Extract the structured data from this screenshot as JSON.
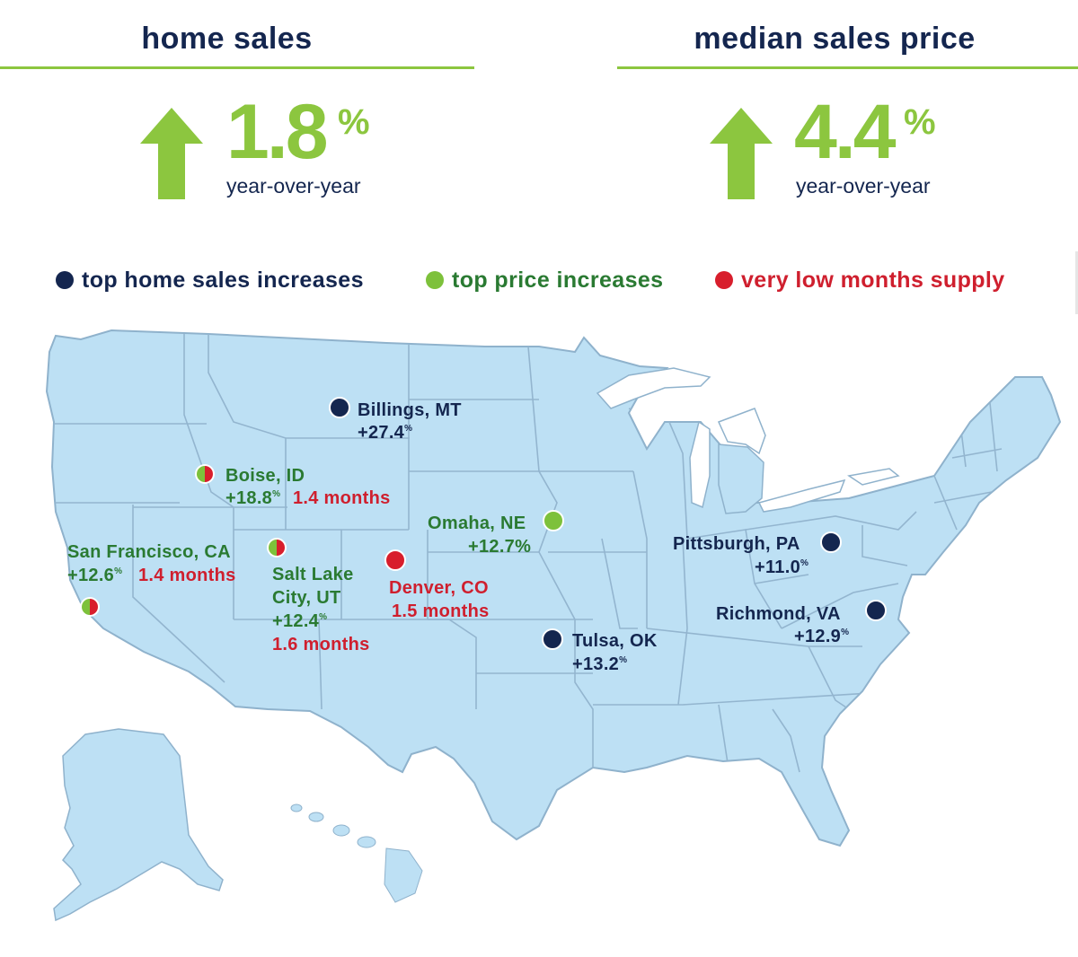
{
  "home_sales": {
    "title": "home sales",
    "value": "1.8",
    "unit": "%",
    "caption": "year-over-year",
    "direction_icon": "arrow-up-icon"
  },
  "median_price": {
    "title": "median sales price",
    "value": "4.4",
    "unit": "%",
    "caption": "year-over-year",
    "direction_icon": "arrow-up-icon"
  },
  "legend": [
    {
      "label": "top home sales increases",
      "color": "#14264f"
    },
    {
      "label": "top price increases",
      "color": "#7dc13b"
    },
    {
      "label": "very low months supply",
      "color": "#d81e2c"
    }
  ],
  "colors": {
    "navy": "#14264f",
    "green": "#8cc63f",
    "red": "#d81e2c",
    "map_fill": "#bde0f4",
    "map_border": "#8fb2cc"
  },
  "cities": [
    {
      "name": "Billings, MT",
      "sales_change": "+27.4",
      "unit": "%",
      "category": "top home sales increases"
    },
    {
      "name": "Boise, ID",
      "sales_change": "+18.8",
      "unit": "%",
      "supply": "1.4 months",
      "category": "top price increases / very low months supply"
    },
    {
      "name": "Omaha, NE",
      "sales_change": "+12.7",
      "unit": "%",
      "category": "top price increases"
    },
    {
      "name": "San Francisco, CA",
      "sales_change": "+12.6",
      "unit": "%",
      "supply": "1.4 months",
      "category": "top price increases / very low months supply"
    },
    {
      "name_line1": "Salt Lake",
      "name_line2": "City, UT",
      "sales_change": "+12.4",
      "unit": "%",
      "supply": "1.6 months",
      "category": "top price increases / very low months supply"
    },
    {
      "name": "Denver, CO",
      "supply": "1.5 months",
      "category": "very low months supply"
    },
    {
      "name": "Pittsburgh, PA",
      "sales_change": "+11.0",
      "unit": "%",
      "category": "top home sales increases"
    },
    {
      "name": "Richmond, VA",
      "sales_change": "+12.9",
      "unit": "%",
      "category": "top home sales increases"
    },
    {
      "name": "Tulsa, OK",
      "sales_change": "+13.2",
      "unit": "%",
      "category": "top home sales increases"
    }
  ]
}
